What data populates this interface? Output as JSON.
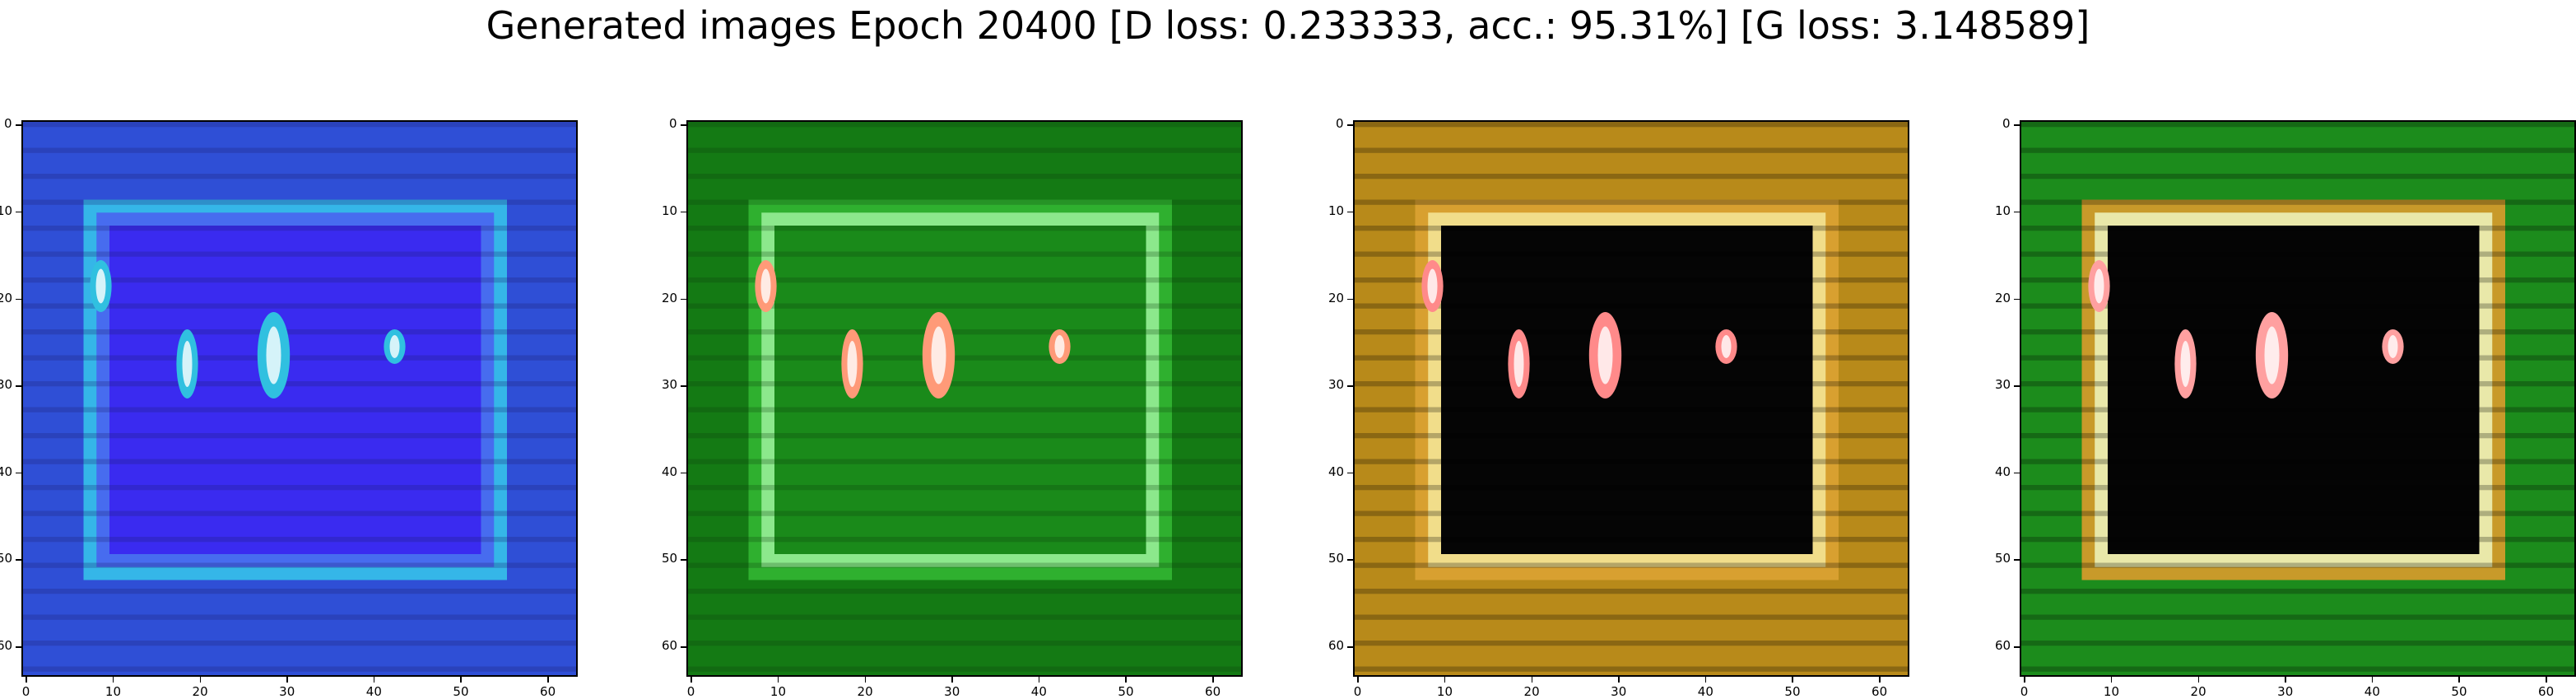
{
  "figure_title": "Generated images Epoch 20400 [D loss: 0.233333, acc.: 95.31%] [G loss: 3.148589]",
  "axis_ticks": [
    "0",
    "10",
    "20",
    "30",
    "40",
    "50",
    "60"
  ],
  "panels": [
    {
      "id": "sample-1",
      "palette": {
        "border": "#2f4fd6",
        "frame": "#4a5ff0",
        "fill": "#3a2bf0",
        "accent": "#35b6e8",
        "dark": "#1c1b6a",
        "spot": "#30c0e0"
      }
    },
    {
      "id": "sample-2",
      "palette": {
        "border": "#147a14",
        "frame": "#9cf29c",
        "fill": "#1a8a1a",
        "accent": "#2fb02f",
        "dark": "#0a3a0a",
        "spot": "#ff9a78"
      }
    },
    {
      "id": "sample-3",
      "palette": {
        "border": "#b88a1a",
        "frame": "#f6e89a",
        "fill": "#050505",
        "accent": "#d8a030",
        "dark": "#000000",
        "spot": "#ff8a8a"
      }
    },
    {
      "id": "sample-4",
      "palette": {
        "border": "#1c8c1c",
        "frame": "#eef6c0",
        "fill": "#040404",
        "accent": "#c89a2a",
        "dark": "#000000",
        "spot": "#ffa0a0"
      }
    }
  ]
}
